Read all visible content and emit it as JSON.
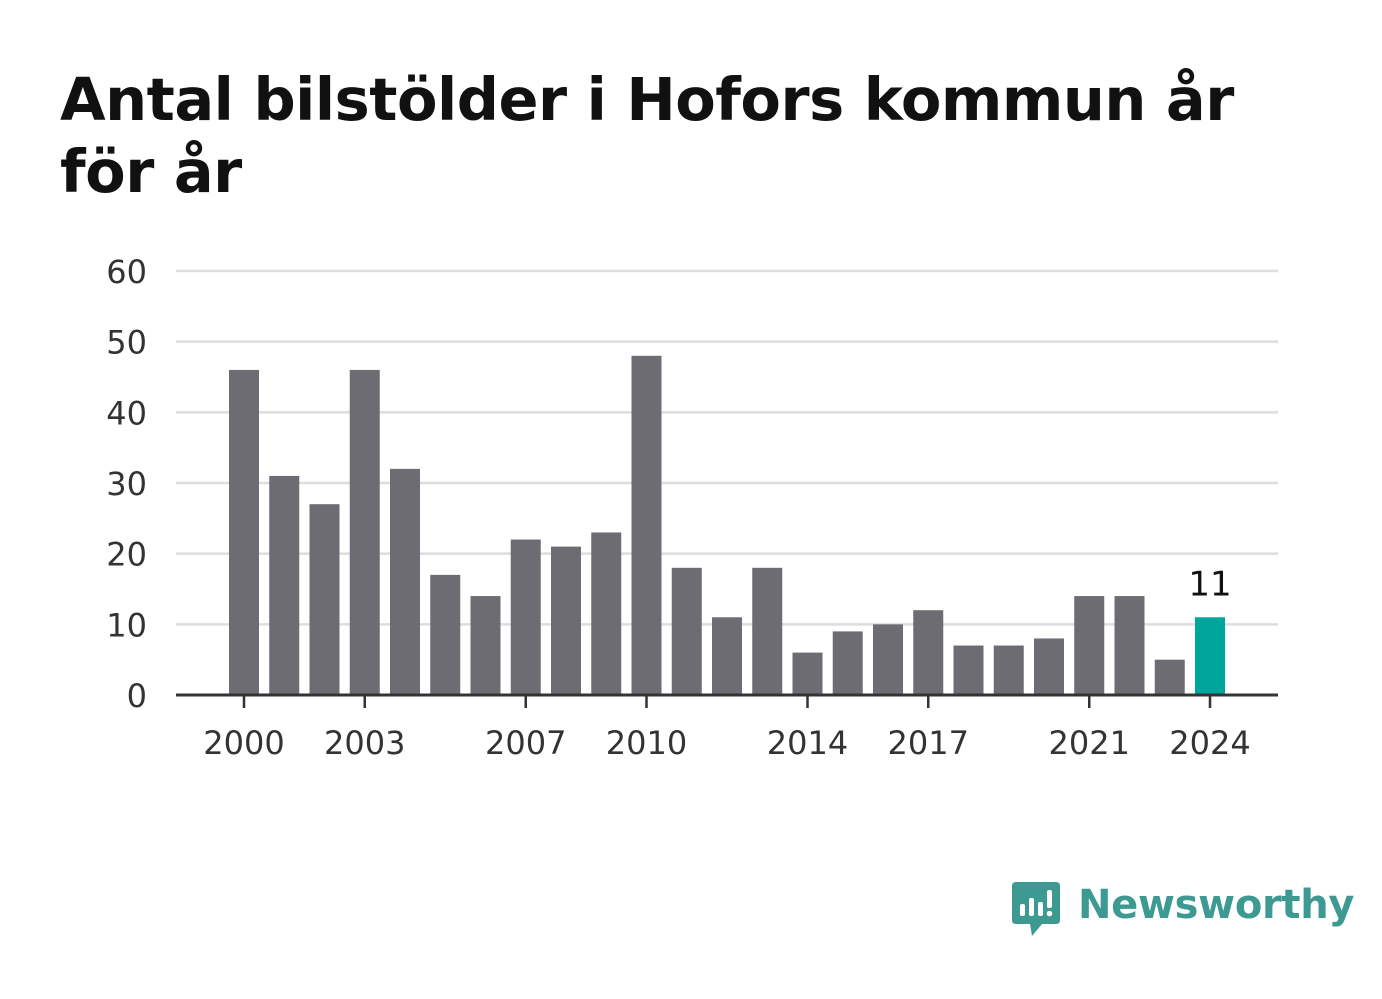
{
  "title": "Antal bilstölder i Hofors kommun år för år",
  "brand": {
    "name": "Newsworthy",
    "icon": "newsworthy-logo-icon",
    "color": "#3c9a92"
  },
  "colors": {
    "bar": "#6d6c72",
    "highlight": "#00a69c",
    "grid": "#dddddd",
    "axis": "#333333"
  },
  "chart_data": {
    "type": "bar",
    "title": "Antal bilstölder i Hofors kommun år för år",
    "categories": [
      "2000",
      "2001",
      "2002",
      "2003",
      "2004",
      "2005",
      "2006",
      "2007",
      "2008",
      "2009",
      "2010",
      "2011",
      "2012",
      "2013",
      "2014",
      "2015",
      "2016",
      "2017",
      "2018",
      "2019",
      "2020",
      "2021",
      "2022",
      "2023",
      "2024"
    ],
    "values": [
      46,
      31,
      27,
      46,
      32,
      17,
      14,
      22,
      21,
      23,
      48,
      18,
      11,
      18,
      6,
      9,
      10,
      12,
      7,
      7,
      8,
      14,
      14,
      5,
      11
    ],
    "x_tick_labels": [
      "2000",
      "2003",
      "2007",
      "2010",
      "2014",
      "2017",
      "2021",
      "2024"
    ],
    "y_ticks": [
      0,
      10,
      20,
      30,
      40,
      50,
      60
    ],
    "ylim": [
      0,
      60
    ],
    "grid": true,
    "highlight": {
      "category": "2024",
      "label": "11"
    },
    "xlabel": "",
    "ylabel": ""
  }
}
